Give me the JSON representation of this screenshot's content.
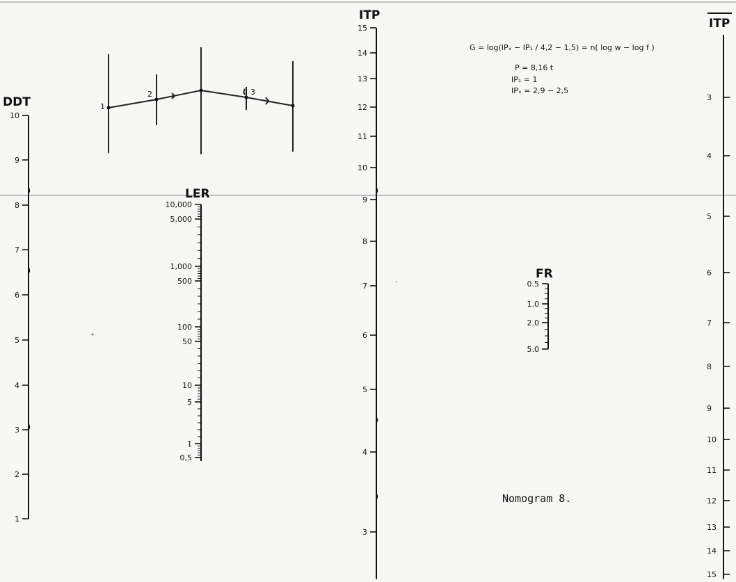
{
  "diagram": {
    "caption": "Nomogram   8.",
    "formula_lines": [
      "G =  log(IPₓ − IP₁ / 4,2 − 1,5) = n( log w − log f )",
      "P  = 8,16 t",
      "IP₁ = 1",
      "IPₓ =  2,9 − 2,5"
    ],
    "scales": {
      "ddt": {
        "title": "DDT",
        "ticks": [
          "10",
          "9",
          "8",
          "7",
          "6",
          "5",
          "4",
          "3",
          "2",
          "1"
        ]
      },
      "ler": {
        "title": "LER",
        "ticks": [
          "10,000",
          "5,000",
          "1,000",
          "500",
          "100",
          "50",
          "10",
          "5",
          "1",
          "0,5"
        ]
      },
      "itp": {
        "title": "ITP",
        "ticks": [
          "15",
          "14",
          "13",
          "12",
          "11",
          "10",
          "9",
          "8",
          "7",
          "6",
          "5",
          "4",
          "3"
        ]
      },
      "fr": {
        "title": "FR",
        "ticks": [
          "0.5",
          "1.0",
          "2.0",
          "5.0"
        ]
      },
      "itp_bar": {
        "title": "ITP",
        "ticks": [
          "3",
          "4",
          "5",
          "6",
          "7",
          "8",
          "9",
          "10",
          "11",
          "12",
          "13",
          "14",
          "15"
        ]
      }
    },
    "pivot_labels": [
      "1",
      "2",
      "3"
    ]
  }
}
